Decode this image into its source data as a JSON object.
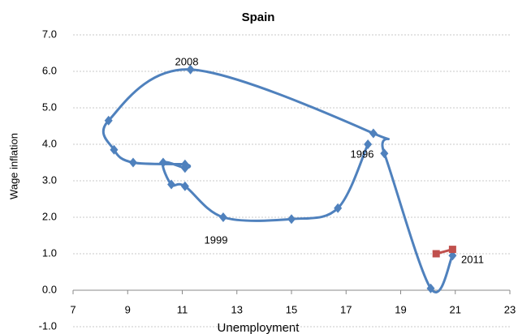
{
  "chart_data": {
    "type": "line",
    "title": "Spain",
    "x_label": "Unemployment",
    "y_label": "Wage inflation",
    "xlim": [
      7,
      23
    ],
    "xticks": [
      7,
      9,
      11,
      13,
      15,
      17,
      19,
      21,
      23
    ],
    "ylim": [
      -1,
      7
    ],
    "yticks": [
      {
        "value": -1,
        "label": "-1.0"
      },
      {
        "value": 0,
        "label": "0.0"
      },
      {
        "value": 1,
        "label": "1.0"
      },
      {
        "value": 2,
        "label": "2.0"
      },
      {
        "value": 3,
        "label": "3.0"
      },
      {
        "value": 4,
        "label": "4.0"
      },
      {
        "value": 5,
        "label": "5.0"
      },
      {
        "value": 6,
        "label": "6.0"
      },
      {
        "value": 7,
        "label": "7.0"
      }
    ],
    "grid": true,
    "series": [
      {
        "color": "#4f81bd",
        "marker": "diamond",
        "x": [
          17.8,
          16.7,
          15.0,
          12.5,
          11.1,
          10.6,
          10.3,
          11.1,
          11.1,
          9.2,
          8.5,
          8.3,
          11.3,
          18.0,
          18.4,
          20.1,
          20.9
        ],
        "values": [
          4.0,
          2.25,
          1.95,
          2.0,
          2.85,
          2.9,
          3.5,
          3.35,
          3.45,
          3.5,
          3.85,
          4.65,
          6.05,
          4.3,
          3.75,
          0.05,
          0.95
        ]
      },
      {
        "color": "#c0504d",
        "marker": "square",
        "x": [
          20.3,
          20.9
        ],
        "values": [
          1.0,
          1.12
        ]
      }
    ],
    "annotations": [
      "2008",
      "1996",
      "1999",
      "2011"
    ]
  }
}
